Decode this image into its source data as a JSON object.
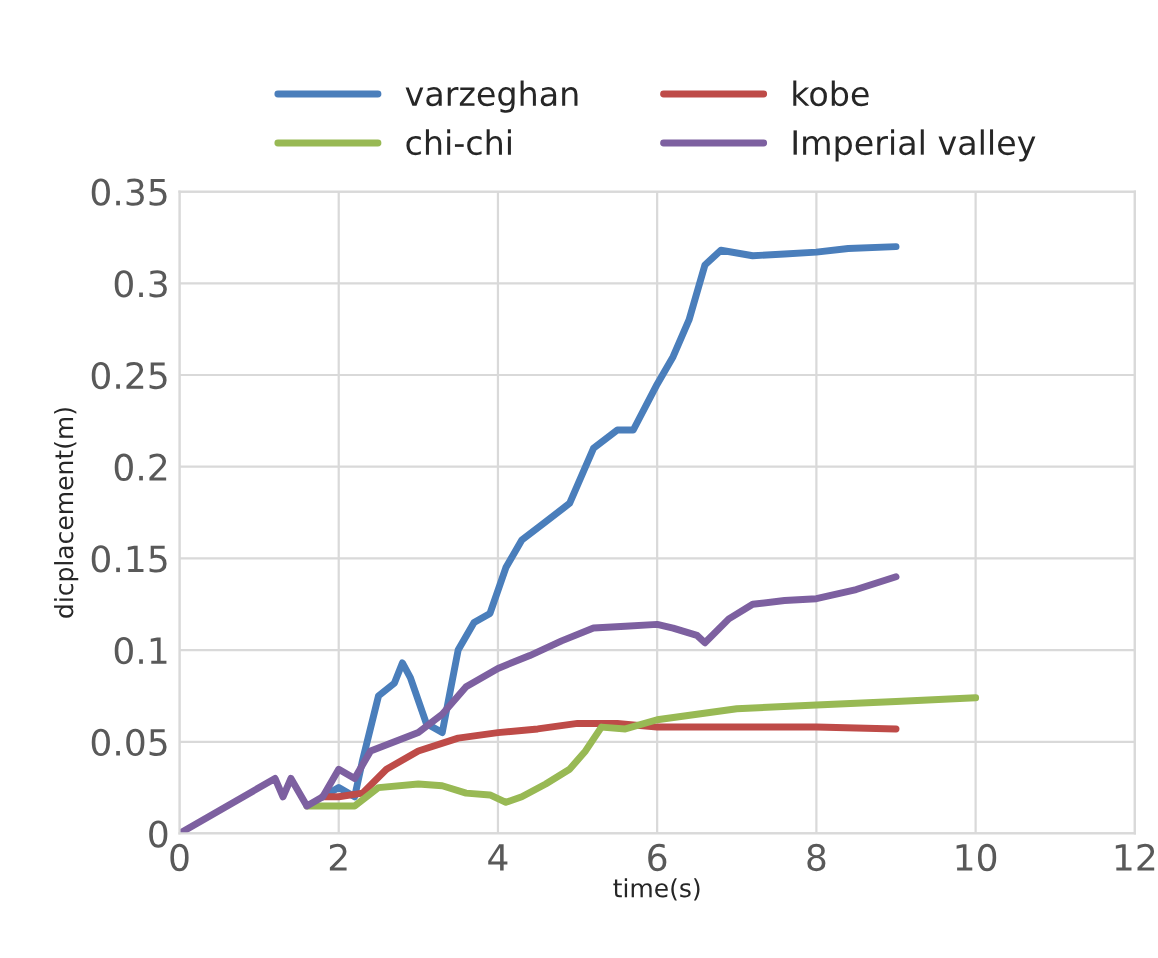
{
  "chart_data": {
    "type": "line",
    "xlabel": "time(s)",
    "ylabel": "dicplacement(m)",
    "xlim": [
      0,
      12
    ],
    "xticks": [
      0,
      2,
      4,
      6,
      8,
      10,
      12
    ],
    "ylim": [
      0,
      0.35
    ],
    "yticks": [
      0,
      0.05,
      0.1,
      0.15,
      0.2,
      0.25,
      0.3,
      0.35
    ],
    "grid": true,
    "legend": "top",
    "marker": "none",
    "line_style": "solid",
    "series": [
      {
        "name": "varzeghan",
        "color": "#4a7ebb",
        "x": [
          1.8,
          2.0,
          2.2,
          2.3,
          2.5,
          2.7,
          2.8,
          2.9,
          3.1,
          3.3,
          3.5,
          3.7,
          3.9,
          4.1,
          4.3,
          4.6,
          4.9,
          5.2,
          5.5,
          5.7,
          6.0,
          6.2,
          6.4,
          6.6,
          6.8,
          7.2,
          7.6,
          8.0,
          8.4,
          9.0
        ],
        "values": [
          0.02,
          0.025,
          0.02,
          0.04,
          0.075,
          0.082,
          0.093,
          0.085,
          0.06,
          0.055,
          0.1,
          0.115,
          0.12,
          0.145,
          0.16,
          0.17,
          0.18,
          0.21,
          0.22,
          0.22,
          0.245,
          0.26,
          0.28,
          0.31,
          0.318,
          0.315,
          0.316,
          0.317,
          0.319,
          0.32
        ]
      },
      {
        "name": "kobe",
        "color": "#be4b48",
        "x": [
          1.8,
          2.0,
          2.3,
          2.6,
          3.0,
          3.5,
          4.0,
          4.5,
          5.0,
          5.5,
          6.0,
          7.0,
          8.0,
          9.0
        ],
        "values": [
          0.02,
          0.02,
          0.022,
          0.035,
          0.045,
          0.052,
          0.055,
          0.057,
          0.06,
          0.06,
          0.058,
          0.058,
          0.058,
          0.057
        ]
      },
      {
        "name": "chi-chi",
        "color": "#98b954",
        "x": [
          1.6,
          1.8,
          2.2,
          2.5,
          3.0,
          3.3,
          3.6,
          3.9,
          4.1,
          4.3,
          4.6,
          4.9,
          5.1,
          5.3,
          5.6,
          6.0,
          6.5,
          7.0,
          8.0,
          9.0,
          10.0
        ],
        "values": [
          0.015,
          0.015,
          0.015,
          0.025,
          0.027,
          0.026,
          0.022,
          0.021,
          0.017,
          0.02,
          0.027,
          0.035,
          0.045,
          0.058,
          0.057,
          0.062,
          0.065,
          0.068,
          0.07,
          0.072,
          0.074
        ]
      },
      {
        "name": "Imperial valley",
        "color": "#7d60a0",
        "x": [
          0,
          1.2,
          1.3,
          1.4,
          1.6,
          1.8,
          2.0,
          2.2,
          2.4,
          2.7,
          3.0,
          3.3,
          3.6,
          4.0,
          4.4,
          4.8,
          5.2,
          5.6,
          6.0,
          6.2,
          6.5,
          6.6,
          6.9,
          7.2,
          7.6,
          8.0,
          8.5,
          9.0
        ],
        "values": [
          0,
          0.03,
          0.02,
          0.03,
          0.015,
          0.02,
          0.035,
          0.03,
          0.045,
          0.05,
          0.055,
          0.065,
          0.08,
          0.09,
          0.097,
          0.105,
          0.112,
          0.113,
          0.114,
          0.112,
          0.108,
          0.104,
          0.117,
          0.125,
          0.127,
          0.128,
          0.133,
          0.14
        ]
      }
    ]
  }
}
